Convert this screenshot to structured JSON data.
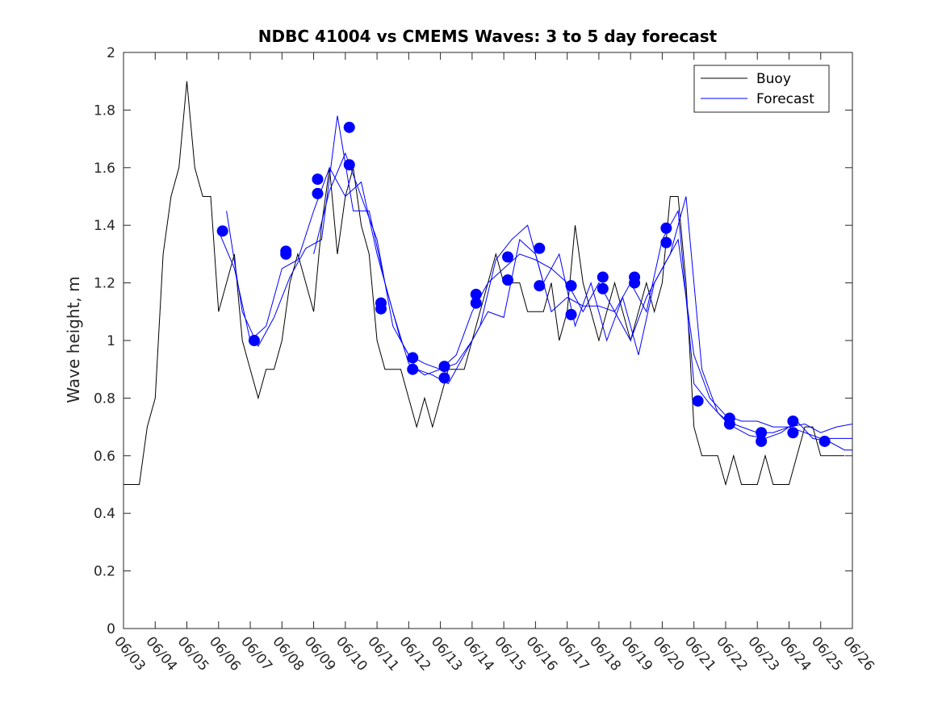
{
  "chart_data": {
    "type": "line",
    "title": "NDBC 41004 vs CMEMS Waves: 3 to 5 day forecast",
    "xlabel": "",
    "ylabel": "Wave height, m",
    "ylim": [
      0,
      2
    ],
    "yticks": [
      0,
      0.2,
      0.4,
      0.6,
      0.8,
      1,
      1.2,
      1.4,
      1.6,
      1.8,
      2
    ],
    "ytick_labels": [
      "0",
      "0.2",
      "0.4",
      "0.6",
      "0.8",
      "1",
      "1.2",
      "1.4",
      "1.6",
      "1.8",
      "2"
    ],
    "xtick_labels": [
      "06/03",
      "06/04",
      "06/05",
      "06/06",
      "06/07",
      "06/08",
      "06/09",
      "06/10",
      "06/11",
      "06/12",
      "06/13",
      "06/14",
      "06/15",
      "06/16",
      "06/17",
      "06/18",
      "06/19",
      "06/20",
      "06/21",
      "06/22",
      "06/23",
      "06/24",
      "06/25",
      "06/26"
    ],
    "grid": false,
    "legend_position": "top-right",
    "series": [
      {
        "name": "Buoy",
        "color": "#000000",
        "x": [
          "06/03 00:00",
          "06/03 12:00",
          "06/03 18:00",
          "06/04 00:00",
          "06/04 06:00",
          "06/04 12:00",
          "06/04 18:00",
          "06/05 00:00",
          "06/05 06:00",
          "06/05 12:00",
          "06/05 18:00",
          "06/06 00:00",
          "06/06 06:00",
          "06/06 12:00",
          "06/06 18:00",
          "06/07 00:00",
          "06/07 06:00",
          "06/07 12:00",
          "06/07 18:00",
          "06/08 00:00",
          "06/08 06:00",
          "06/08 12:00",
          "06/08 18:00",
          "06/09 00:00",
          "06/09 06:00",
          "06/09 12:00",
          "06/09 18:00",
          "06/10 00:00",
          "06/10 06:00",
          "06/10 12:00",
          "06/10 18:00",
          "06/11 00:00",
          "06/11 06:00",
          "06/11 12:00",
          "06/11 18:00",
          "06/12 00:00",
          "06/12 06:00",
          "06/12 12:00",
          "06/12 18:00",
          "06/13 00:00",
          "06/13 06:00",
          "06/13 12:00",
          "06/13 18:00",
          "06/14 00:00",
          "06/14 06:00",
          "06/14 12:00",
          "06/14 18:00",
          "06/15 00:00",
          "06/15 06:00",
          "06/15 12:00",
          "06/15 18:00",
          "06/16 00:00",
          "06/16 06:00",
          "06/16 12:00",
          "06/16 18:00",
          "06/17 00:00",
          "06/17 06:00",
          "06/17 12:00",
          "06/17 18:00",
          "06/18 00:00",
          "06/18 06:00",
          "06/18 12:00",
          "06/18 18:00",
          "06/19 00:00",
          "06/19 06:00",
          "06/19 12:00",
          "06/19 18:00",
          "06/20 00:00",
          "06/20 06:00",
          "06/20 12:00",
          "06/20 18:00",
          "06/21 00:00",
          "06/21 06:00",
          "06/21 12:00",
          "06/21 18:00",
          "06/22 00:00",
          "06/22 06:00",
          "06/22 12:00",
          "06/22 18:00",
          "06/23 00:00",
          "06/23 06:00",
          "06/23 12:00",
          "06/23 18:00",
          "06/24 00:00",
          "06/24 06:00",
          "06/24 12:00",
          "06/24 18:00",
          "06/25 00:00",
          "06/25 06:00",
          "06/25 12:00",
          "06/25 18:00"
        ],
        "values": [
          0.5,
          0.5,
          0.7,
          0.8,
          1.3,
          1.5,
          1.6,
          1.9,
          1.6,
          1.5,
          1.5,
          1.1,
          1.2,
          1.3,
          1.0,
          0.9,
          0.8,
          0.9,
          0.9,
          1.0,
          1.2,
          1.3,
          1.2,
          1.1,
          1.4,
          1.6,
          1.3,
          1.5,
          1.6,
          1.4,
          1.3,
          1.0,
          0.9,
          0.9,
          0.9,
          0.8,
          0.7,
          0.8,
          0.7,
          0.8,
          0.9,
          0.9,
          0.9,
          1.0,
          1.1,
          1.2,
          1.3,
          1.2,
          1.2,
          1.2,
          1.1,
          1.1,
          1.1,
          1.2,
          1.0,
          1.1,
          1.4,
          1.2,
          1.1,
          1.0,
          1.1,
          1.2,
          1.1,
          1.0,
          1.1,
          1.2,
          1.1,
          1.2,
          1.5,
          1.5,
          1.2,
          0.7,
          0.6,
          0.6,
          0.6,
          0.5,
          0.6,
          0.5,
          0.5,
          0.5,
          0.6,
          0.5,
          0.5,
          0.5,
          0.6,
          0.7,
          0.7,
          0.6,
          0.6,
          0.6,
          0.6
        ]
      },
      {
        "name": "Forecast",
        "color": "#0000ff",
        "x": [
          "06/06 00:00",
          "06/06 12:00",
          "06/07 00:00",
          "06/07 12:00",
          "06/08 00:00",
          "06/08 12:00",
          "06/09 00:00",
          "06/09 12:00",
          "06/10 00:00",
          "06/10 12:00",
          "06/11 00:00",
          "06/11 12:00",
          "06/12 00:00",
          "06/12 12:00",
          "06/13 00:00",
          "06/13 12:00",
          "06/14 00:00",
          "06/14 12:00",
          "06/15 00:00",
          "06/15 12:00",
          "06/16 00:00",
          "06/16 12:00",
          "06/17 00:00",
          "06/17 12:00",
          "06/18 00:00",
          "06/18 12:00",
          "06/19 00:00",
          "06/19 12:00",
          "06/20 00:00",
          "06/20 12:00",
          "06/21 00:00",
          "06/21 12:00",
          "06/22 00:00",
          "06/22 12:00",
          "06/23 00:00",
          "06/23 12:00",
          "06/24 00:00",
          "06/24 12:00",
          "06/25 00:00",
          "06/25 12:00",
          "06/26 00:00"
        ],
        "values": [
          1.38,
          1.25,
          1.0,
          1.05,
          1.25,
          1.28,
          1.45,
          1.6,
          1.5,
          1.55,
          1.3,
          1.1,
          0.92,
          0.88,
          0.9,
          0.95,
          1.1,
          1.2,
          1.25,
          1.3,
          1.28,
          1.25,
          1.2,
          1.1,
          1.2,
          1.1,
          1.2,
          1.1,
          1.35,
          1.45,
          0.85,
          0.78,
          0.72,
          0.7,
          0.68,
          0.68,
          0.7,
          0.68,
          0.66,
          0.66,
          0.66
        ]
      },
      {
        "name": "Forecast",
        "color": "#0000ff",
        "x": [
          "06/06 06:00",
          "06/06 18:00",
          "06/07 06:00",
          "06/07 18:00",
          "06/08 06:00",
          "06/08 18:00",
          "06/09 06:00",
          "06/09 18:00",
          "06/10 06:00",
          "06/10 18:00",
          "06/11 06:00",
          "06/11 18:00",
          "06/12 06:00",
          "06/12 18:00",
          "06/13 06:00",
          "06/13 18:00",
          "06/14 06:00",
          "06/14 18:00",
          "06/15 06:00",
          "06/15 18:00",
          "06/16 06:00",
          "06/16 18:00",
          "06/17 06:00",
          "06/17 18:00",
          "06/18 06:00",
          "06/18 18:00",
          "06/19 06:00",
          "06/19 18:00",
          "06/20 06:00",
          "06/20 18:00",
          "06/21 06:00",
          "06/21 18:00",
          "06/22 06:00",
          "06/22 18:00",
          "06/23 06:00",
          "06/23 18:00",
          "06/24 06:00",
          "06/24 18:00",
          "06/25 06:00",
          "06/25 18:00",
          "06/26 00:00"
        ],
        "values": [
          1.45,
          1.1,
          0.98,
          1.08,
          1.22,
          1.32,
          1.35,
          1.78,
          1.45,
          1.45,
          1.2,
          1.0,
          0.9,
          0.88,
          0.85,
          0.95,
          1.05,
          1.28,
          1.35,
          1.4,
          1.2,
          1.3,
          1.05,
          1.2,
          1.0,
          1.15,
          0.95,
          1.2,
          1.3,
          1.5,
          0.9,
          0.75,
          0.7,
          0.67,
          0.66,
          0.68,
          0.72,
          0.66,
          0.65,
          0.62,
          0.62
        ]
      },
      {
        "name": "Forecast",
        "color": "#0000ff",
        "x": [
          "06/09 00:00",
          "06/09 12:00",
          "06/10 00:00",
          "06/10 12:00",
          "06/11 00:00",
          "06/11 12:00",
          "06/12 00:00",
          "06/12 12:00",
          "06/13 00:00",
          "06/13 12:00",
          "06/14 00:00",
          "06/14 12:00",
          "06/15 00:00",
          "06/15 12:00",
          "06/16 00:00",
          "06/16 12:00",
          "06/17 00:00",
          "06/17 12:00",
          "06/18 00:00",
          "06/18 12:00",
          "06/19 00:00",
          "06/19 12:00",
          "06/20 00:00",
          "06/20 12:00",
          "06/21 00:00",
          "06/21 12:00",
          "06/22 00:00",
          "06/22 12:00",
          "06/23 00:00",
          "06/23 12:00",
          "06/24 00:00",
          "06/24 12:00",
          "06/25 00:00",
          "06/25 12:00",
          "06/26 00:00"
        ],
        "values": [
          1.3,
          1.52,
          1.65,
          1.5,
          1.35,
          1.05,
          0.95,
          0.92,
          0.9,
          0.92,
          1.0,
          1.1,
          1.08,
          1.35,
          1.3,
          1.1,
          1.15,
          1.12,
          1.12,
          1.1,
          1.0,
          1.15,
          1.25,
          1.35,
          0.95,
          0.8,
          0.74,
          0.72,
          0.72,
          0.7,
          0.7,
          0.71,
          0.68,
          0.7,
          0.71
        ]
      }
    ],
    "markers": {
      "color": "#0000ff",
      "points": [
        {
          "x": "06/06 03:00",
          "y": 1.38
        },
        {
          "x": "06/07 03:00",
          "y": 1.0
        },
        {
          "x": "06/08 03:00",
          "y": 1.31
        },
        {
          "x": "06/08 03:00",
          "y": 1.3
        },
        {
          "x": "06/09 03:00",
          "y": 1.56
        },
        {
          "x": "06/09 03:00",
          "y": 1.51
        },
        {
          "x": "06/10 03:00",
          "y": 1.74
        },
        {
          "x": "06/10 03:00",
          "y": 1.61
        },
        {
          "x": "06/11 03:00",
          "y": 1.13
        },
        {
          "x": "06/11 03:00",
          "y": 1.11
        },
        {
          "x": "06/12 03:00",
          "y": 0.94
        },
        {
          "x": "06/12 03:00",
          "y": 0.9
        },
        {
          "x": "06/13 03:00",
          "y": 0.91
        },
        {
          "x": "06/13 03:00",
          "y": 0.87
        },
        {
          "x": "06/14 03:00",
          "y": 1.16
        },
        {
          "x": "06/14 03:00",
          "y": 1.13
        },
        {
          "x": "06/15 03:00",
          "y": 1.29
        },
        {
          "x": "06/15 03:00",
          "y": 1.21
        },
        {
          "x": "06/16 03:00",
          "y": 1.32
        },
        {
          "x": "06/16 03:00",
          "y": 1.19
        },
        {
          "x": "06/17 03:00",
          "y": 1.19
        },
        {
          "x": "06/17 03:00",
          "y": 1.09
        },
        {
          "x": "06/18 03:00",
          "y": 1.22
        },
        {
          "x": "06/18 03:00",
          "y": 1.18
        },
        {
          "x": "06/19 03:00",
          "y": 1.22
        },
        {
          "x": "06/19 03:00",
          "y": 1.2
        },
        {
          "x": "06/20 03:00",
          "y": 1.39
        },
        {
          "x": "06/20 03:00",
          "y": 1.34
        },
        {
          "x": "06/21 03:00",
          "y": 0.79
        },
        {
          "x": "06/22 03:00",
          "y": 0.73
        },
        {
          "x": "06/22 03:00",
          "y": 0.71
        },
        {
          "x": "06/23 03:00",
          "y": 0.68
        },
        {
          "x": "06/23 03:00",
          "y": 0.65
        },
        {
          "x": "06/24 03:00",
          "y": 0.72
        },
        {
          "x": "06/24 03:00",
          "y": 0.68
        },
        {
          "x": "06/25 03:00",
          "y": 0.65
        }
      ]
    }
  }
}
